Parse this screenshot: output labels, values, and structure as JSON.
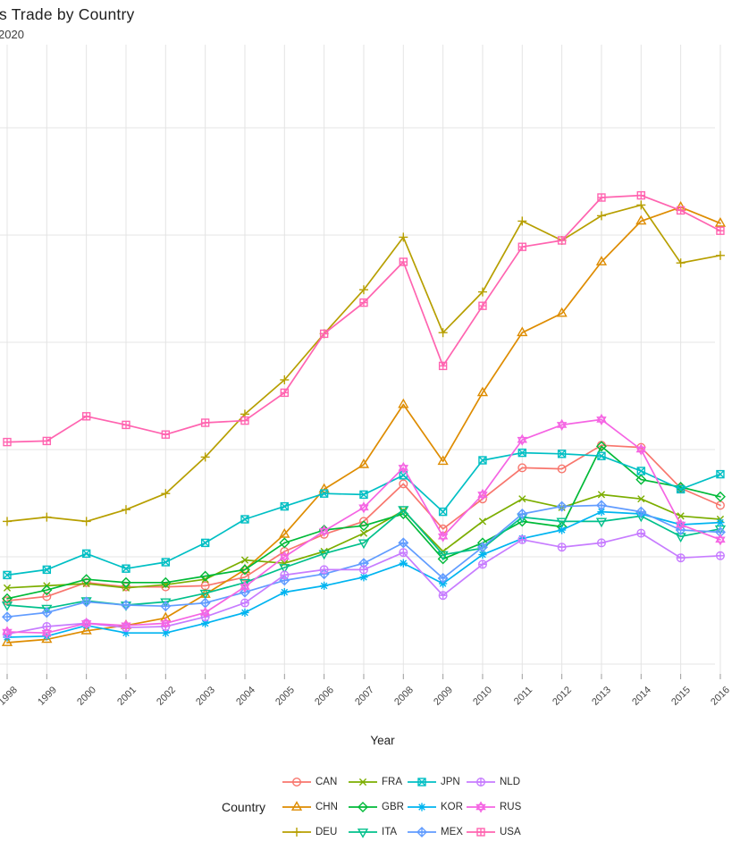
{
  "header": {
    "title": "s Trade by Country",
    "subtitle": "2020"
  },
  "x_axis": {
    "title": "Year",
    "tick_labels": [
      "1998",
      "1999",
      "2000",
      "2001",
      "2002",
      "2003",
      "2004",
      "2005",
      "2006",
      "2007",
      "2008",
      "2009",
      "2010",
      "2011",
      "2012",
      "2013",
      "2014",
      "2015",
      "2016"
    ]
  },
  "y_axis": {
    "tick_labels": [],
    "gridline_values": [
      0,
      1,
      2,
      3,
      4,
      5
    ]
  },
  "legend": {
    "title": "Country",
    "position": "bottom"
  },
  "chart_data": {
    "type": "line",
    "title": "s Trade by Country",
    "subtitle": "2020",
    "xlabel": "Year",
    "ylabel": "",
    "x": [
      1998,
      1999,
      2000,
      2001,
      2002,
      2003,
      2004,
      2005,
      2006,
      2007,
      2008,
      2009,
      2010,
      2011,
      2012,
      2013,
      2014,
      2015,
      2016
    ],
    "xlim": [
      1997.8,
      2016.2
    ],
    "ylim": [
      0,
      5.8
    ],
    "grid": true,
    "legend_position": "bottom",
    "y_units": "gridline intervals (axis labels cropped out of view; 1 unit = one horizontal gridline spacing above the lowest gridline)",
    "series": [
      {
        "name": "CAN",
        "color": "#F8766D",
        "marker": "circle",
        "values": [
          0.59,
          0.63,
          0.76,
          0.72,
          0.72,
          0.73,
          0.81,
          1.05,
          1.21,
          1.33,
          1.68,
          1.26,
          1.54,
          1.83,
          1.82,
          2.04,
          2.02,
          1.64,
          1.48
        ]
      },
      {
        "name": "CHN",
        "color": "#DE8C00",
        "marker": "triangle-up",
        "values": [
          0.2,
          0.23,
          0.31,
          0.36,
          0.43,
          0.65,
          0.88,
          1.21,
          1.63,
          1.86,
          2.42,
          1.89,
          2.53,
          3.09,
          3.27,
          3.75,
          4.13,
          4.26,
          4.11
        ]
      },
      {
        "name": "DEU",
        "color": "#B79F00",
        "marker": "plus",
        "values": [
          1.33,
          1.37,
          1.33,
          1.44,
          1.59,
          1.93,
          2.33,
          2.65,
          3.08,
          3.49,
          3.98,
          3.09,
          3.47,
          4.13,
          3.95,
          4.18,
          4.28,
          3.74,
          3.81
        ]
      },
      {
        "name": "FRA",
        "color": "#7CAE00",
        "marker": "cross",
        "values": [
          0.71,
          0.73,
          0.75,
          0.71,
          0.74,
          0.79,
          0.97,
          0.94,
          1.05,
          1.22,
          1.43,
          1.05,
          1.33,
          1.54,
          1.46,
          1.58,
          1.54,
          1.38,
          1.35
        ]
      },
      {
        "name": "GBR",
        "color": "#00BA38",
        "marker": "diamond",
        "values": [
          0.61,
          0.69,
          0.79,
          0.76,
          0.76,
          0.82,
          0.88,
          1.13,
          1.25,
          1.29,
          1.4,
          0.98,
          1.13,
          1.33,
          1.28,
          2.03,
          1.72,
          1.65,
          1.56
        ]
      },
      {
        "name": "ITA",
        "color": "#00C08B",
        "marker": "triangle-down",
        "values": [
          0.55,
          0.52,
          0.59,
          0.55,
          0.58,
          0.66,
          0.76,
          0.9,
          1.03,
          1.13,
          1.44,
          1.02,
          1.08,
          1.37,
          1.33,
          1.33,
          1.38,
          1.19,
          1.26
        ]
      },
      {
        "name": "JPN",
        "color": "#00BFC4",
        "marker": "square-cross",
        "values": [
          0.83,
          0.88,
          1.03,
          0.89,
          0.95,
          1.13,
          1.35,
          1.47,
          1.59,
          1.58,
          1.76,
          1.42,
          1.9,
          1.97,
          1.96,
          1.94,
          1.8,
          1.63,
          1.77
        ]
      },
      {
        "name": "KOR",
        "color": "#00B4F0",
        "marker": "asterisk",
        "values": [
          0.25,
          0.26,
          0.36,
          0.29,
          0.29,
          0.38,
          0.48,
          0.67,
          0.73,
          0.81,
          0.94,
          0.75,
          1.02,
          1.17,
          1.25,
          1.42,
          1.4,
          1.3,
          1.32
        ]
      },
      {
        "name": "MEX",
        "color": "#619CFF",
        "marker": "diamond-plus",
        "values": [
          0.44,
          0.48,
          0.58,
          0.55,
          0.54,
          0.57,
          0.67,
          0.78,
          0.84,
          0.94,
          1.13,
          0.8,
          1.09,
          1.4,
          1.47,
          1.48,
          1.42,
          1.25,
          1.23
        ]
      },
      {
        "name": "NLD",
        "color": "#C77CFF",
        "marker": "circle-plus",
        "values": [
          0.28,
          0.35,
          0.38,
          0.34,
          0.35,
          0.44,
          0.57,
          0.83,
          0.88,
          0.88,
          1.04,
          0.64,
          0.93,
          1.16,
          1.09,
          1.13,
          1.22,
          0.99,
          1.01
        ]
      },
      {
        "name": "RUS",
        "color": "#F564E3",
        "marker": "hexagram",
        "values": [
          0.3,
          0.29,
          0.38,
          0.36,
          0.38,
          0.48,
          0.72,
          1.0,
          1.24,
          1.46,
          1.83,
          1.19,
          1.58,
          2.09,
          2.23,
          2.28,
          2.0,
          1.3,
          1.16
        ]
      },
      {
        "name": "USA",
        "color": "#FF64B0",
        "marker": "square-plus",
        "values": [
          2.07,
          2.08,
          2.31,
          2.23,
          2.14,
          2.25,
          2.27,
          2.53,
          3.08,
          3.37,
          3.75,
          2.78,
          3.34,
          3.89,
          3.95,
          4.35,
          4.37,
          4.23,
          4.04
        ]
      }
    ]
  },
  "style": {
    "gridline_color": "#e4e4e4",
    "tick_color": "#9a9a9a",
    "text_color": "#474747"
  }
}
